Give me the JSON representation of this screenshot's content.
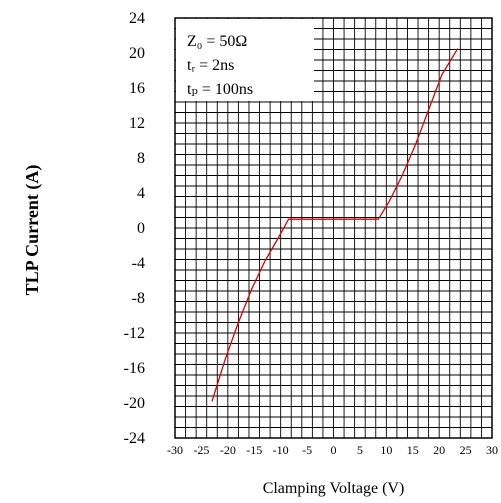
{
  "chart_data": {
    "type": "line",
    "title": "",
    "xlabel": "Clamping Voltage (V)",
    "ylabel": "TLP Current (A)",
    "xlim": [
      -30,
      30
    ],
    "ylim": [
      -24,
      24
    ],
    "x_ticks": [
      -30,
      -25,
      -20,
      -15,
      -10,
      -5,
      0,
      5,
      10,
      15,
      20,
      25,
      30
    ],
    "y_ticks": [
      24,
      20,
      16,
      12,
      8,
      4,
      0,
      -4,
      -8,
      -12,
      -16,
      -20,
      -24
    ],
    "grid": true,
    "series": [
      {
        "color": "#e00000",
        "x": [
          -23,
          -20.5,
          -18,
          -15.5,
          -13,
          -10.5,
          -8.5,
          0,
          8.5,
          10.5,
          13,
          15.5,
          18,
          20.5,
          23.5
        ],
        "y": [
          -19.8,
          -15,
          -10.8,
          -7,
          -3.8,
          -1.2,
          1.0,
          1.0,
          1.0,
          3.0,
          6.0,
          9.5,
          13.5,
          17.5,
          20.5
        ]
      }
    ],
    "annotations": {
      "z0": "Z₀ = 50Ω",
      "tr": "tᵣ = 2ns",
      "tp": "tₚ = 100ns"
    }
  }
}
